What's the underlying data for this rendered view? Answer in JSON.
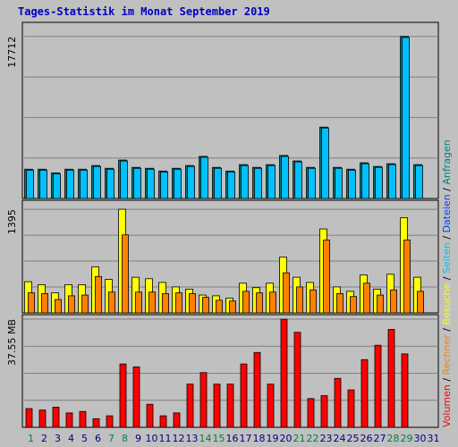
{
  "title": "Tages-Statistik im Monat September 2019",
  "colors": {
    "background": "#c0c0c0",
    "plot_bg": "#c0c0c0",
    "grid": "#808080",
    "title": "#0000c0",
    "weekday": "#000080",
    "weekend": "#008040",
    "anfragen": "#008080",
    "dateien": "#00c0ff",
    "seiten": "#00c0ff",
    "besuche": "#ffff00",
    "rechner": "#ff8000",
    "volumen": "#ff0000",
    "slash": "#000000"
  },
  "chart_data": [
    {
      "type": "bar",
      "name": "Anfragen / Dateien",
      "ylabel": "17712",
      "ymax": 17712,
      "categories": [
        "1",
        "2",
        "3",
        "4",
        "5",
        "6",
        "7",
        "8",
        "9",
        "10",
        "11",
        "12",
        "13",
        "14",
        "15",
        "16",
        "17",
        "18",
        "19",
        "20",
        "21",
        "22",
        "23",
        "24",
        "25",
        "26",
        "27",
        "28",
        "29",
        "30"
      ],
      "weekend_days": [
        "1",
        "7",
        "8",
        "14",
        "15",
        "21",
        "22",
        "28",
        "29"
      ],
      "series": [
        {
          "name": "Anfragen",
          "color": "#008080",
          "values": [
            3200,
            3200,
            2800,
            3200,
            3200,
            3600,
            3300,
            4200,
            3400,
            3300,
            3000,
            3300,
            3600,
            4600,
            3400,
            3000,
            3700,
            3400,
            3700,
            4700,
            4100,
            3400,
            7800,
            3400,
            3200,
            3900,
            3500,
            3800,
            17712,
            3700
          ]
        },
        {
          "name": "Dateien",
          "color": "#00c0ff",
          "values": [
            3100,
            3100,
            2700,
            3100,
            3100,
            3500,
            3200,
            4100,
            3300,
            3200,
            2900,
            3200,
            3500,
            4500,
            3300,
            2900,
            3600,
            3300,
            3600,
            4600,
            4000,
            3300,
            7700,
            3300,
            3100,
            3800,
            3400,
            3700,
            17600,
            3600
          ]
        }
      ]
    },
    {
      "type": "bar",
      "name": "Seiten / Besuche / Rechner",
      "ylabel": "1395",
      "ymax": 1395,
      "categories": [
        "1",
        "2",
        "3",
        "4",
        "5",
        "6",
        "7",
        "8",
        "9",
        "10",
        "11",
        "12",
        "13",
        "14",
        "15",
        "16",
        "17",
        "18",
        "19",
        "20",
        "21",
        "22",
        "23",
        "24",
        "25",
        "26",
        "27",
        "28",
        "29",
        "30"
      ],
      "series": [
        {
          "name": "Seiten",
          "color": "#00c0ff",
          "values": [
            0,
            0,
            0,
            0,
            0,
            0,
            0,
            0,
            0,
            0,
            0,
            0,
            0,
            0,
            0,
            0,
            0,
            0,
            0,
            0,
            0,
            0,
            0,
            0,
            0,
            0,
            0,
            0,
            0,
            0
          ]
        },
        {
          "name": "Besuche",
          "color": "#ffff00",
          "values": [
            420,
            380,
            270,
            380,
            380,
            620,
            450,
            1395,
            480,
            460,
            410,
            350,
            320,
            240,
            230,
            200,
            400,
            340,
            400,
            750,
            480,
            410,
            1130,
            350,
            290,
            510,
            320,
            520,
            1280,
            480
          ]
        },
        {
          "name": "Rechner",
          "color": "#ff8000",
          "values": [
            270,
            260,
            180,
            230,
            240,
            490,
            280,
            1050,
            280,
            280,
            260,
            270,
            260,
            210,
            170,
            160,
            290,
            270,
            280,
            540,
            350,
            310,
            980,
            260,
            220,
            400,
            240,
            310,
            980,
            290
          ]
        }
      ]
    },
    {
      "type": "bar",
      "name": "Volumen",
      "ylabel": "37.55 MB",
      "ymax": 37.55,
      "categories": [
        "1",
        "2",
        "3",
        "4",
        "5",
        "6",
        "7",
        "8",
        "9",
        "10",
        "11",
        "12",
        "13",
        "14",
        "15",
        "16",
        "17",
        "18",
        "19",
        "20",
        "21",
        "22",
        "23",
        "24",
        "25",
        "26",
        "27",
        "28",
        "29",
        "30"
      ],
      "series": [
        {
          "name": "Volumen",
          "color": "#ff0000",
          "values": [
            6.5,
            6,
            7,
            5,
            5.5,
            3,
            4,
            22,
            21,
            8,
            4,
            5,
            15,
            19,
            15,
            15,
            22,
            26,
            15,
            37.55,
            33,
            10,
            11,
            17,
            13,
            23.5,
            28.5,
            34,
            25.5,
            0
          ]
        }
      ]
    }
  ],
  "x_axis": {
    "tick_labels": [
      "1",
      "2",
      "3",
      "4",
      "5",
      "6",
      "7",
      "8",
      "9",
      "10",
      "11",
      "12",
      "13",
      "14",
      "15",
      "16",
      "17",
      "18",
      "19",
      "20",
      "21",
      "22",
      "23",
      "24",
      "25",
      "26",
      "27",
      "28",
      "29",
      "30",
      "31"
    ],
    "weekend": [
      "1",
      "7",
      "8",
      "14",
      "15",
      "21",
      "22",
      "28",
      "29"
    ]
  },
  "right_legend": [
    {
      "text": "Volumen",
      "color": "#ff0000"
    },
    {
      "text": " / ",
      "color": "#000000"
    },
    {
      "text": "Rechner",
      "color": "#ff8000"
    },
    {
      "text": " / ",
      "color": "#000000"
    },
    {
      "text": "Besuche",
      "color": "#ffff00"
    },
    {
      "text": " / ",
      "color": "#000000"
    },
    {
      "text": "Seiten",
      "color": "#00c0ff"
    },
    {
      "text": " / ",
      "color": "#000000"
    },
    {
      "text": "Dateien",
      "color": "#0040ff"
    },
    {
      "text": " / ",
      "color": "#000000"
    },
    {
      "text": "Anfragen",
      "color": "#008080"
    }
  ]
}
